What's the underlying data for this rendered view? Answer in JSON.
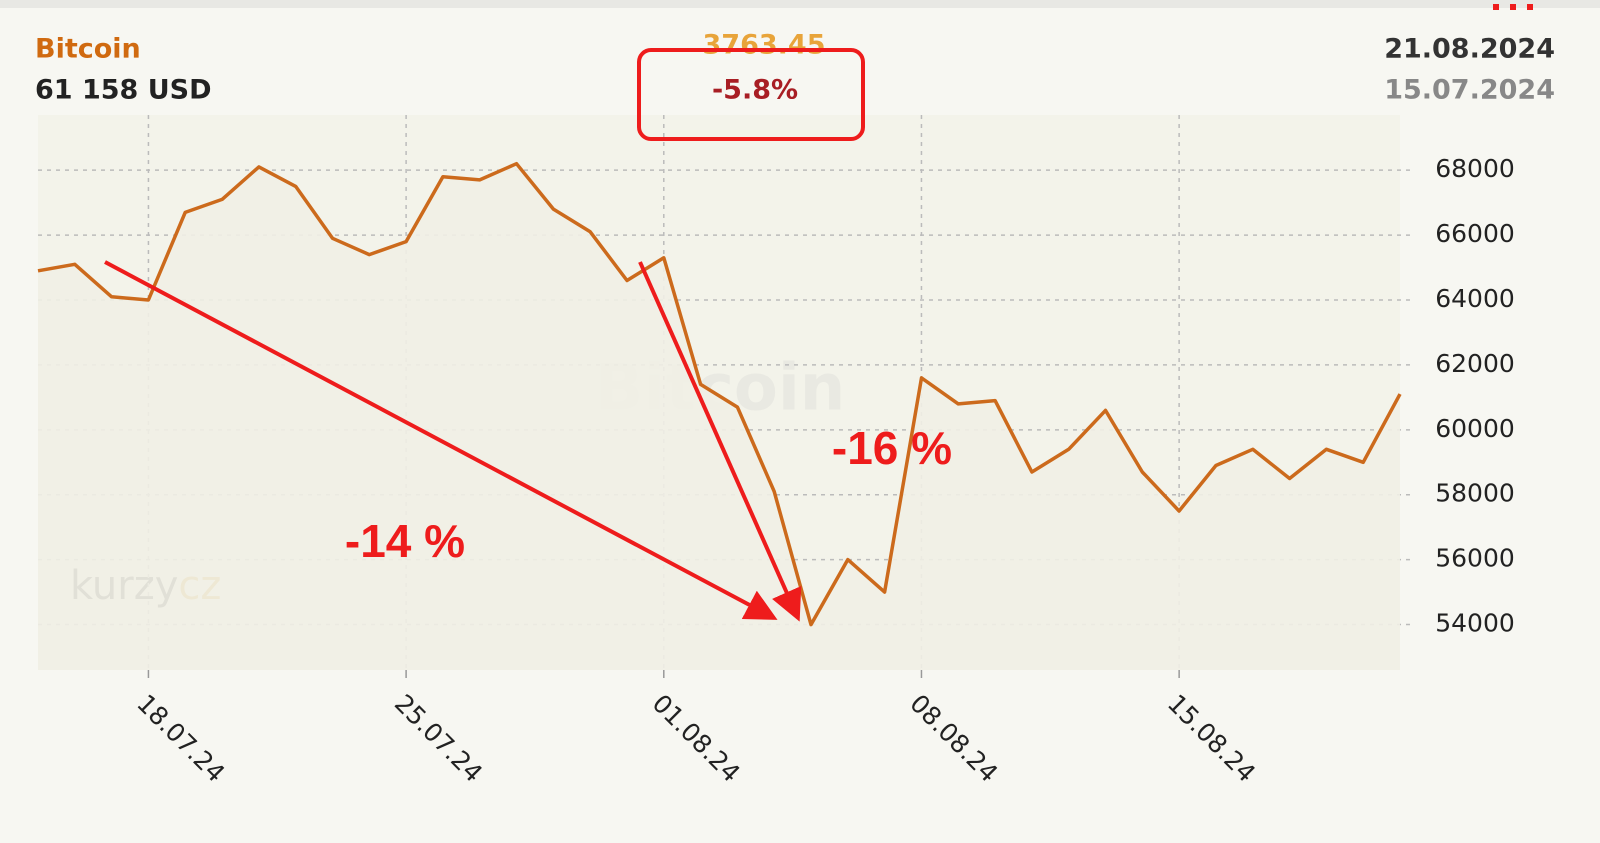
{
  "chart_data": {
    "type": "line",
    "title": "Bitcoin",
    "subtitle": "61 158 USD",
    "header": {
      "change": "3763.45",
      "percent_change": "-5.8%",
      "end_date": "21.08.2024",
      "start_date": "15.07.2024"
    },
    "watermark": "Bitcoin",
    "logo": [
      "kurzy",
      "cz"
    ],
    "annotations": [
      "-14 %",
      "-16 %"
    ],
    "categories": [
      null,
      null,
      null,
      "18.07.24",
      null,
      null,
      null,
      null,
      null,
      null,
      "25.07.24",
      null,
      null,
      null,
      null,
      null,
      null,
      "01.08.24",
      null,
      null,
      null,
      null,
      null,
      null,
      "08.08.24",
      null,
      null,
      null,
      null,
      null,
      null,
      "15.08.24",
      null,
      null,
      null,
      null,
      null,
      null
    ],
    "values": [
      64900,
      65100,
      64100,
      64000,
      66700,
      67100,
      68100,
      67500,
      65900,
      65400,
      65800,
      67800,
      67700,
      68200,
      66800,
      66100,
      64600,
      65300,
      61400,
      60700,
      58100,
      54000,
      56000,
      55000,
      61600,
      60800,
      60900,
      58700,
      59400,
      60600,
      58700,
      57500,
      58900,
      59400,
      58500,
      59400,
      59000,
      61100
    ],
    "color": "#cc6a1c",
    "ylim": [
      52600,
      69700
    ],
    "yticks": [
      54000,
      56000,
      58000,
      60000,
      62000,
      64000,
      66000,
      68000
    ],
    "grid": true
  }
}
